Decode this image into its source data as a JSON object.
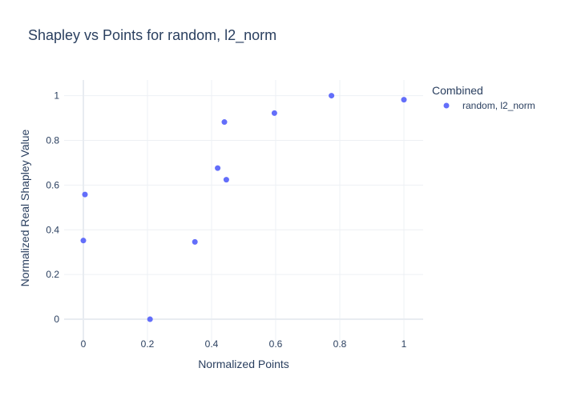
{
  "chart_data": {
    "type": "scatter",
    "title": "Shapley vs Points for random, l2_norm",
    "xlabel": "Normalized Points",
    "ylabel": "Normalized Real Shapley Value",
    "xlim": [
      -0.06,
      1.06
    ],
    "ylim": [
      -0.1,
      1.07
    ],
    "xticks": [
      0,
      0.2,
      0.4,
      0.6,
      0.8,
      1
    ],
    "xtick_labels": [
      "0",
      "0.2",
      "0.4",
      "0.6",
      "0.8",
      "1"
    ],
    "yticks": [
      0,
      0.2,
      0.4,
      0.6,
      0.8,
      1
    ],
    "ytick_labels": [
      "0",
      "0.2",
      "0.4",
      "0.6",
      "0.8",
      "1"
    ],
    "grid": true,
    "legend": {
      "title": "Combined",
      "placement": "right"
    },
    "series": [
      {
        "name": "random, l2_norm",
        "color": "#636efa",
        "x": [
          0.0,
          0.005,
          0.208,
          0.348,
          0.419,
          0.44,
          0.446,
          0.596,
          0.774,
          1.0
        ],
        "y": [
          0.352,
          0.558,
          0.0,
          0.346,
          0.676,
          0.882,
          0.624,
          0.922,
          1.0,
          0.982
        ]
      }
    ]
  }
}
